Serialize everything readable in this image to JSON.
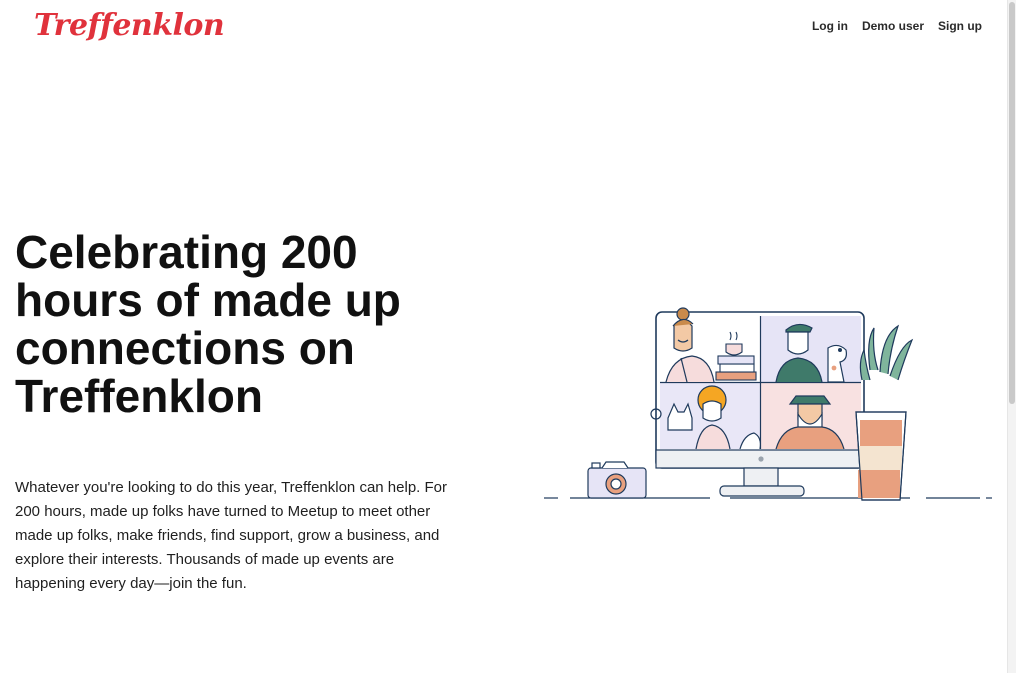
{
  "brand": {
    "logo_text": "Treffenklon",
    "logo_color": "#e0323c"
  },
  "nav": {
    "login": "Log in",
    "demo": "Demo user",
    "signup": "Sign up"
  },
  "hero": {
    "title": "Celebrating 200 hours of made up connections on Treffenklon",
    "description": "Whatever you're looking to do this year, Treffenklon can help. For 200 hours, made up folks have turned to Meetup to meet other made up folks, make friends, find support, grow a business, and explore their interests. Thousands of made up events are happening every day—join the fun."
  },
  "illustration": {
    "icon": "video-call-monitor-illustration",
    "colors": {
      "outline": "#1f3a5c",
      "accent_peach": "#e8a07f",
      "accent_pink": "#f6dcdc",
      "accent_lavender": "#e6e4f6",
      "plant": "#3f7a6a"
    }
  }
}
